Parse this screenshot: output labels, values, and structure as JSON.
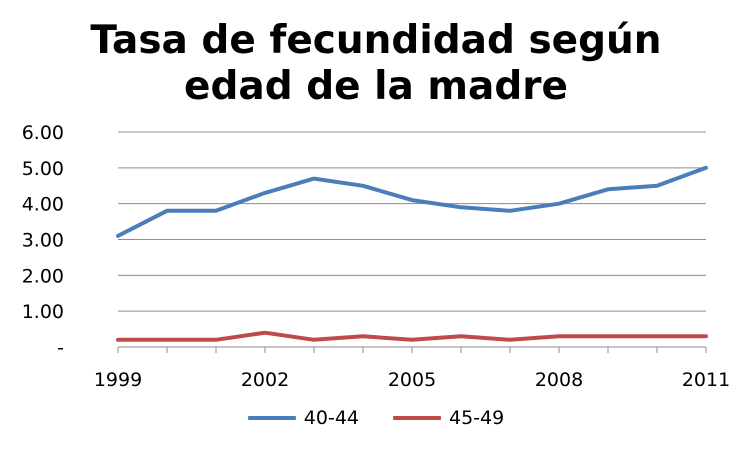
{
  "chart_data": {
    "type": "line",
    "title": [
      "Tasa de fecundidad según",
      "edad de la madre"
    ],
    "x": [
      1999,
      2000,
      2001,
      2002,
      2003,
      2004,
      2005,
      2006,
      2007,
      2008,
      2009,
      2010,
      2011
    ],
    "x_tick_labels": [
      "1999",
      "2002",
      "2005",
      "2008",
      "2011"
    ],
    "x_tick_values": [
      1999,
      2002,
      2005,
      2008,
      2011
    ],
    "y_tick_labels": [
      "-",
      "1.00",
      "2.00",
      "3.00",
      "4.00",
      "5.00",
      "6.00"
    ],
    "y_tick_values": [
      0,
      1,
      2,
      3,
      4,
      5,
      6
    ],
    "ylim": [
      0,
      6
    ],
    "grid": "horizontal",
    "legend_position": "bottom",
    "series": [
      {
        "name": "40-44",
        "color": "#4a7ebb",
        "values": [
          3.1,
          3.8,
          3.8,
          4.3,
          4.7,
          4.5,
          4.1,
          3.9,
          3.8,
          4.0,
          4.4,
          4.5,
          5.0
        ]
      },
      {
        "name": "45-49",
        "color": "#be4b48",
        "values": [
          0.2,
          0.2,
          0.2,
          0.4,
          0.2,
          0.3,
          0.2,
          0.3,
          0.2,
          0.3,
          0.3,
          0.3,
          0.3
        ]
      }
    ]
  }
}
